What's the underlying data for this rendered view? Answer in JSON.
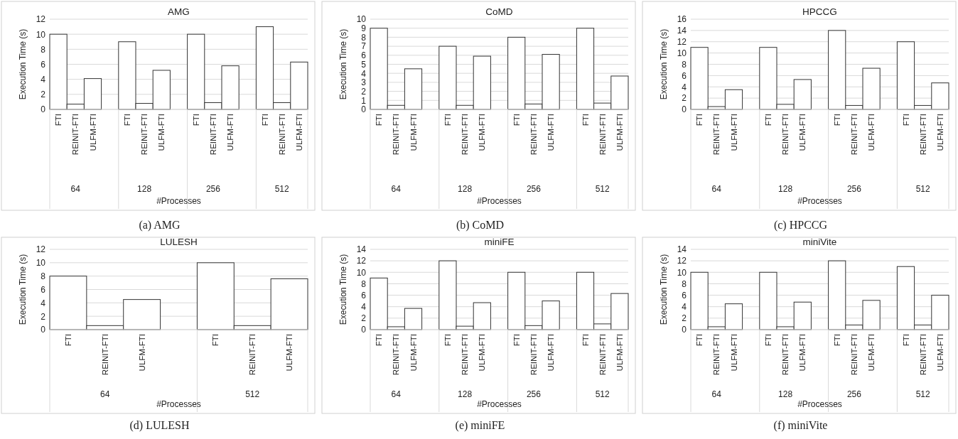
{
  "chart_data": [
    {
      "type": "bar",
      "title": "AMG",
      "xlabel": "#Processes",
      "ylabel": "Execution Time (s)",
      "grid": "y",
      "categories": [
        "FTI",
        "REINIT-FTI",
        "ULFM-FTI",
        null,
        "FTI",
        "REINIT-FTI",
        "ULFM-FTI",
        null,
        "FTI",
        "REINIT-FTI",
        "ULFM-FTI",
        null,
        "FTI",
        "REINIT-FTI",
        "ULFM-FTI"
      ],
      "values": [
        10,
        0.7,
        4.1,
        null,
        9,
        0.8,
        5.2,
        null,
        10,
        0.9,
        5.8,
        null,
        11,
        0.9,
        6.3
      ],
      "color": "#ffffff",
      "ylim": [
        0,
        12
      ],
      "yticks": [
        0,
        2,
        4,
        6,
        8,
        10,
        12
      ],
      "annotations": [
        "64",
        "128",
        "256",
        "512",
        "(a) AMG"
      ]
    },
    {
      "type": "bar",
      "title": "CoMD",
      "xlabel": "#Processes",
      "ylabel": "Execution Time (s)",
      "grid": "y",
      "categories": [
        "FTI",
        "REINIT-FTI",
        "ULFM-FTI",
        null,
        "FTI",
        "REINIT-FTI",
        "ULFM-FTI",
        null,
        "FTI",
        "REINIT-FTI",
        "ULFM-FTI",
        null,
        "FTI",
        "REINIT-FTI",
        "ULFM-FTI"
      ],
      "values": [
        9,
        0.45,
        4.5,
        null,
        7,
        0.45,
        5.9,
        null,
        8,
        0.6,
        6.1,
        null,
        9,
        0.7,
        3.7
      ],
      "color": "#ffffff",
      "ylim": [
        0,
        10
      ],
      "yticks": [
        0,
        1,
        2,
        3,
        4,
        5,
        6,
        7,
        8,
        9,
        10
      ],
      "annotations": [
        "64",
        "128",
        "256",
        "512",
        "(b) CoMD"
      ]
    },
    {
      "type": "bar",
      "title": "HPCCG",
      "xlabel": "#Processes",
      "ylabel": "Execution Time (s)",
      "grid": "y",
      "categories": [
        "FTI",
        "REINIT-FTI",
        "ULFM-FTI",
        null,
        "FTI",
        "REINIT-FTI",
        "ULFM-FTI",
        null,
        "FTI",
        "REINIT-FTI",
        "ULFM-FTI",
        null,
        "FTI",
        "REINIT-FTI",
        "ULFM-FTI"
      ],
      "values": [
        11,
        0.5,
        3.5,
        null,
        11,
        0.9,
        5.3,
        null,
        14,
        0.7,
        7.3,
        null,
        12,
        0.7,
        4.7
      ],
      "color": "#ffffff",
      "ylim": [
        0,
        16
      ],
      "yticks": [
        0,
        2,
        4,
        6,
        8,
        10,
        12,
        14,
        16
      ],
      "annotations": [
        "64",
        "128",
        "256",
        "512",
        "(c) HPCCG"
      ]
    },
    {
      "type": "bar",
      "title": "LULESH",
      "xlabel": "#Processes",
      "ylabel": "Execution Time (s)",
      "grid": "y",
      "categories": [
        "FTI",
        "REINIT-FTI",
        "ULFM-FTI",
        null,
        "FTI",
        "REINIT-FTI",
        "ULFM-FTI"
      ],
      "values": [
        8,
        0.6,
        4.5,
        null,
        10,
        0.6,
        7.6
      ],
      "color": "#ffffff",
      "ylim": [
        0,
        12
      ],
      "yticks": [
        0,
        2,
        4,
        6,
        8,
        10,
        12
      ],
      "annotations": [
        "64",
        "512",
        "(d) LULESH"
      ]
    },
    {
      "type": "bar",
      "title": "miniFE",
      "xlabel": "#Processes",
      "ylabel": "Execution Time (s)",
      "grid": "y",
      "categories": [
        "FTI",
        "REINIT-FTI",
        "ULFM-FTI",
        null,
        "FTI",
        "REINIT-FTI",
        "ULFM-FTI",
        null,
        "FTI",
        "REINIT-FTI",
        "ULFM-FTI",
        null,
        "FTI",
        "REINIT-FTI",
        "ULFM-FTI"
      ],
      "values": [
        9,
        0.5,
        3.7,
        null,
        12,
        0.6,
        4.7,
        null,
        10,
        0.7,
        5.0,
        null,
        10,
        1.0,
        6.3
      ],
      "color": "#ffffff",
      "ylim": [
        0,
        14
      ],
      "yticks": [
        0,
        2,
        4,
        6,
        8,
        10,
        12,
        14
      ],
      "annotations": [
        "64",
        "128",
        "256",
        "512",
        "(e) miniFE"
      ]
    },
    {
      "type": "bar",
      "title": "miniVite",
      "xlabel": "#Processes",
      "ylabel": "Execution Time (s)",
      "grid": "y",
      "categories": [
        "FTI",
        "REINIT-FTI",
        "ULFM-FTI",
        null,
        "FTI",
        "REINIT-FTI",
        "ULFM-FTI",
        null,
        "FTI",
        "REINIT-FTI",
        "ULFM-FTI",
        null,
        "FTI",
        "REINIT-FTI",
        "ULFM-FTI"
      ],
      "values": [
        10,
        0.5,
        4.5,
        null,
        10,
        0.5,
        4.8,
        null,
        12,
        0.8,
        5.1,
        null,
        11,
        0.8,
        6.0
      ],
      "color": "#ffffff",
      "ylim": [
        0,
        14
      ],
      "yticks": [
        0,
        2,
        4,
        6,
        8,
        10,
        12,
        14
      ],
      "annotations": [
        "64",
        "128",
        "256",
        "512",
        "(f) miniVite"
      ]
    }
  ]
}
